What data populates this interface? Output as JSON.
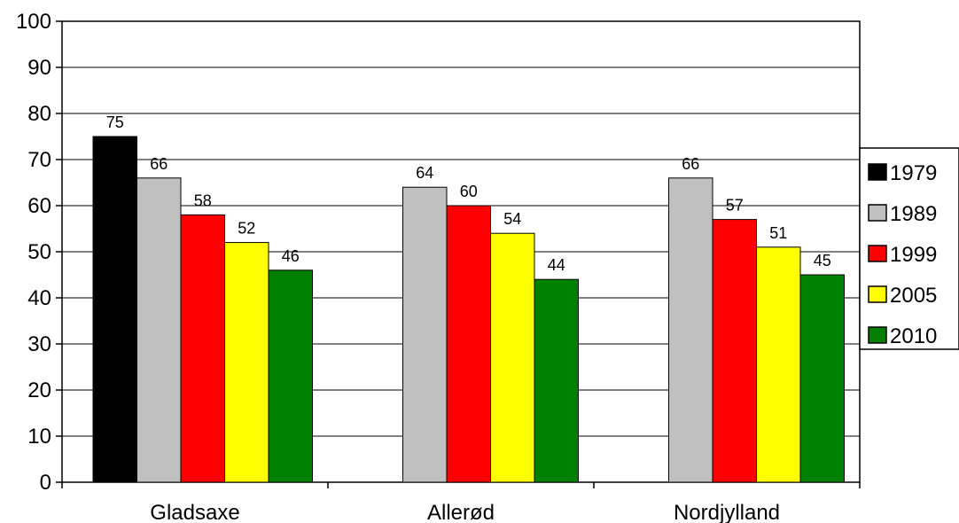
{
  "chart_data": {
    "type": "bar",
    "categories": [
      "Gladsaxe",
      "Allerød",
      "Nordjylland"
    ],
    "series": [
      {
        "name": "1979",
        "color": "#000000",
        "values": [
          75,
          null,
          null
        ]
      },
      {
        "name": "1989",
        "color": "#c0c0c0",
        "values": [
          66,
          64,
          66
        ]
      },
      {
        "name": "1999",
        "color": "#ff0000",
        "values": [
          58,
          60,
          57
        ]
      },
      {
        "name": "2005",
        "color": "#ffff00",
        "values": [
          52,
          54,
          51
        ]
      },
      {
        "name": "2010",
        "color": "#008000",
        "values": [
          46,
          44,
          45
        ]
      }
    ],
    "title": "",
    "xlabel": "",
    "ylabel": "",
    "ylim": [
      0,
      100
    ],
    "yticks": [
      0,
      10,
      20,
      30,
      40,
      50,
      60,
      70,
      80,
      90,
      100
    ],
    "grid": true,
    "legend_position": "right"
  }
}
